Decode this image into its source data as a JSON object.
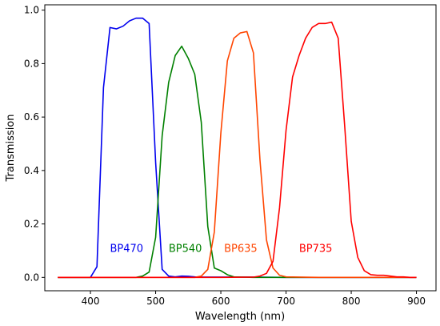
{
  "chart_data": {
    "type": "line",
    "title": "",
    "xlabel": "Wavelength (nm)",
    "ylabel": "Transmission",
    "xlim": [
      330,
      930
    ],
    "ylim": [
      -0.05,
      1.02
    ],
    "xticks": [
      400,
      500,
      600,
      700,
      800,
      900
    ],
    "yticks": [
      0.0,
      0.2,
      0.4,
      0.6,
      0.8,
      1.0
    ],
    "xtick_labels": [
      "400",
      "500",
      "600",
      "700",
      "800",
      "900"
    ],
    "ytick_labels": [
      "0.0",
      "0.2",
      "0.4",
      "0.6",
      "0.8",
      "1.0"
    ],
    "grid": false,
    "series": [
      {
        "name": "BP470",
        "color": "#0000ee",
        "label_at": [
          430,
          0.11
        ],
        "x": [
          350,
          400,
          410,
          420,
          430,
          440,
          450,
          460,
          470,
          480,
          490,
          500,
          510,
          520,
          530,
          540,
          550,
          560,
          570,
          580,
          600,
          650,
          700,
          750,
          800,
          850,
          900
        ],
        "y": [
          0.0,
          0.0,
          0.04,
          0.71,
          0.935,
          0.93,
          0.94,
          0.96,
          0.97,
          0.97,
          0.95,
          0.43,
          0.03,
          0.005,
          0.002,
          0.005,
          0.004,
          0.002,
          0.001,
          0.001,
          0.001,
          0.001,
          0.0,
          0.0,
          0.0,
          0.0,
          0.0
        ]
      },
      {
        "name": "BP540",
        "color": "#008000",
        "label_at": [
          520,
          0.11
        ],
        "x": [
          350,
          450,
          470,
          480,
          490,
          500,
          510,
          520,
          530,
          540,
          550,
          560,
          570,
          580,
          590,
          600,
          610,
          620,
          650,
          700,
          750,
          800,
          850,
          900
        ],
        "y": [
          0.0,
          0.0,
          0.0,
          0.005,
          0.02,
          0.15,
          0.53,
          0.73,
          0.83,
          0.865,
          0.82,
          0.76,
          0.58,
          0.19,
          0.035,
          0.025,
          0.01,
          0.002,
          0.0,
          0.0,
          0.0,
          0.0,
          0.0,
          0.0
        ]
      },
      {
        "name": "BP635",
        "color": "#ff4500",
        "label_at": [
          605,
          0.11
        ],
        "x": [
          350,
          560,
          570,
          580,
          590,
          600,
          610,
          620,
          630,
          640,
          650,
          660,
          670,
          680,
          690,
          700,
          750,
          800,
          850,
          900
        ],
        "y": [
          0.0,
          0.0,
          0.005,
          0.03,
          0.17,
          0.54,
          0.81,
          0.895,
          0.915,
          0.92,
          0.84,
          0.44,
          0.14,
          0.035,
          0.008,
          0.002,
          0.0,
          0.0,
          0.0,
          0.0
        ]
      },
      {
        "name": "BP735",
        "color": "#ff0000",
        "label_at": [
          720,
          0.11
        ],
        "x": [
          350,
          600,
          650,
          660,
          670,
          680,
          690,
          700,
          710,
          720,
          730,
          740,
          750,
          760,
          770,
          780,
          790,
          800,
          810,
          820,
          830,
          840,
          850,
          860,
          870,
          880,
          890,
          900
        ],
        "y": [
          0.0,
          0.0,
          0.001,
          0.005,
          0.015,
          0.06,
          0.26,
          0.55,
          0.75,
          0.83,
          0.895,
          0.935,
          0.95,
          0.95,
          0.955,
          0.895,
          0.565,
          0.21,
          0.075,
          0.025,
          0.01,
          0.008,
          0.008,
          0.005,
          0.002,
          0.002,
          0.0,
          0.0
        ]
      }
    ]
  }
}
